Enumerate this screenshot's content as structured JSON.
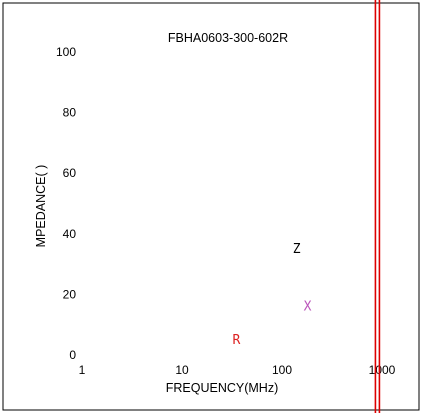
{
  "chart_data": {
    "type": "line",
    "title": "FBHA0603-300-602R",
    "xlabel": "FREQUENCY(MHz)",
    "ylabel": "MPEDANCE(   )",
    "x_scale": "log",
    "xlim": [
      1,
      1000
    ],
    "ylim": [
      0,
      100
    ],
    "x_ticks": [
      "1",
      "10",
      "100",
      "1000"
    ],
    "y_ticks": [
      "0",
      "20",
      "40",
      "60",
      "80",
      "100"
    ],
    "grid": false,
    "series": [
      {
        "name": "Z",
        "color": "#000000",
        "label_at": {
          "x": 140,
          "y": 35
        },
        "x": [],
        "y": []
      },
      {
        "name": "X",
        "color": "#bb55bb",
        "label_at": {
          "x": 180,
          "y": 16
        },
        "x": [],
        "y": []
      },
      {
        "name": "R",
        "color": "#dd2222",
        "label_at": {
          "x": 35,
          "y": 5
        },
        "x": [],
        "y": []
      }
    ],
    "markers": [
      {
        "x": 900,
        "color": "#dd0000"
      }
    ]
  }
}
